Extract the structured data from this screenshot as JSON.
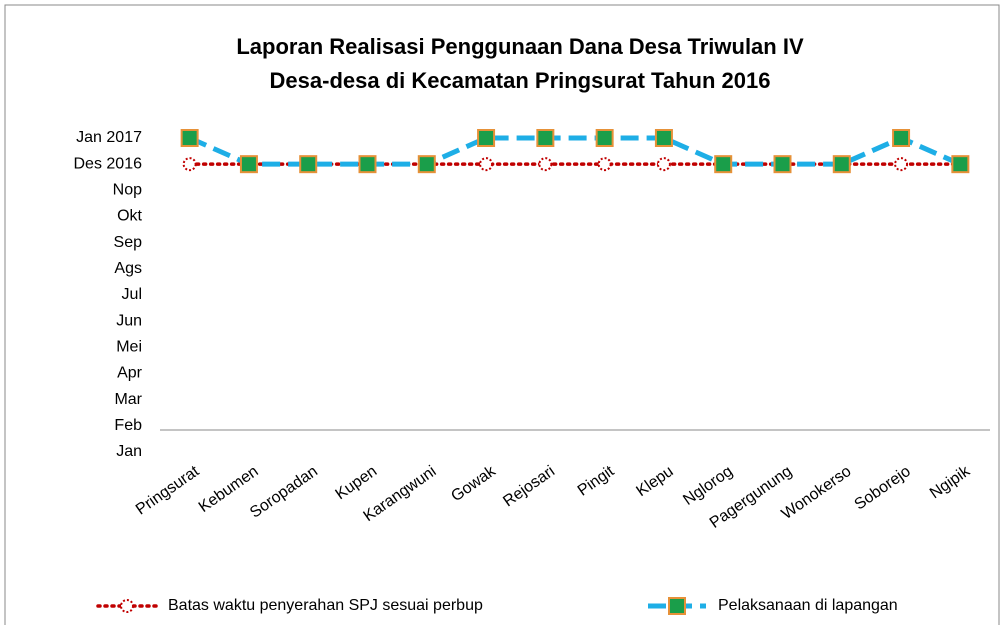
{
  "chart_data": {
    "type": "line",
    "title": [
      "Laporan Realisasi Penggunaan Dana Desa Triwulan IV",
      "Desa-desa di Kecamatan Pringsurat Tahun 2016"
    ],
    "categories": [
      "Pringsurat",
      "Kebumen",
      "Soropadan",
      "Kupen",
      "Karangwuni",
      "Gowak",
      "Rejosari",
      "Pingit",
      "Klepu",
      "Nglorog",
      "Pagergunung",
      "Wonokerso",
      "Soborejo",
      "Ngipik"
    ],
    "series": [
      {
        "name": "Batas waktu penyerahan SPJ sesuai perbup",
        "color": "#c00000",
        "values": [
          12,
          12,
          12,
          12,
          12,
          12,
          12,
          12,
          12,
          12,
          12,
          12,
          12,
          12
        ]
      },
      {
        "name": "Pelaksanaan di lapangan",
        "color": "#1eaee6",
        "values": [
          13,
          12,
          12,
          12,
          12,
          13,
          13,
          13,
          13,
          12,
          12,
          12,
          13,
          12
        ]
      }
    ],
    "ylim": [
      1,
      13
    ],
    "yticks": [
      {
        "value": 1,
        "label": "Jan"
      },
      {
        "value": 2,
        "label": "Feb"
      },
      {
        "value": 3,
        "label": "Mar"
      },
      {
        "value": 4,
        "label": "Apr"
      },
      {
        "value": 5,
        "label": "Mei"
      },
      {
        "value": 6,
        "label": "Jun"
      },
      {
        "value": 7,
        "label": "Jul"
      },
      {
        "value": 8,
        "label": "Ags"
      },
      {
        "value": 9,
        "label": "Sep"
      },
      {
        "value": 10,
        "label": "Okt"
      },
      {
        "value": 11,
        "label": "Nop"
      },
      {
        "value": 12,
        "label": "Des 2016"
      },
      {
        "value": 13,
        "label": "Jan 2017"
      }
    ],
    "grid": false
  }
}
